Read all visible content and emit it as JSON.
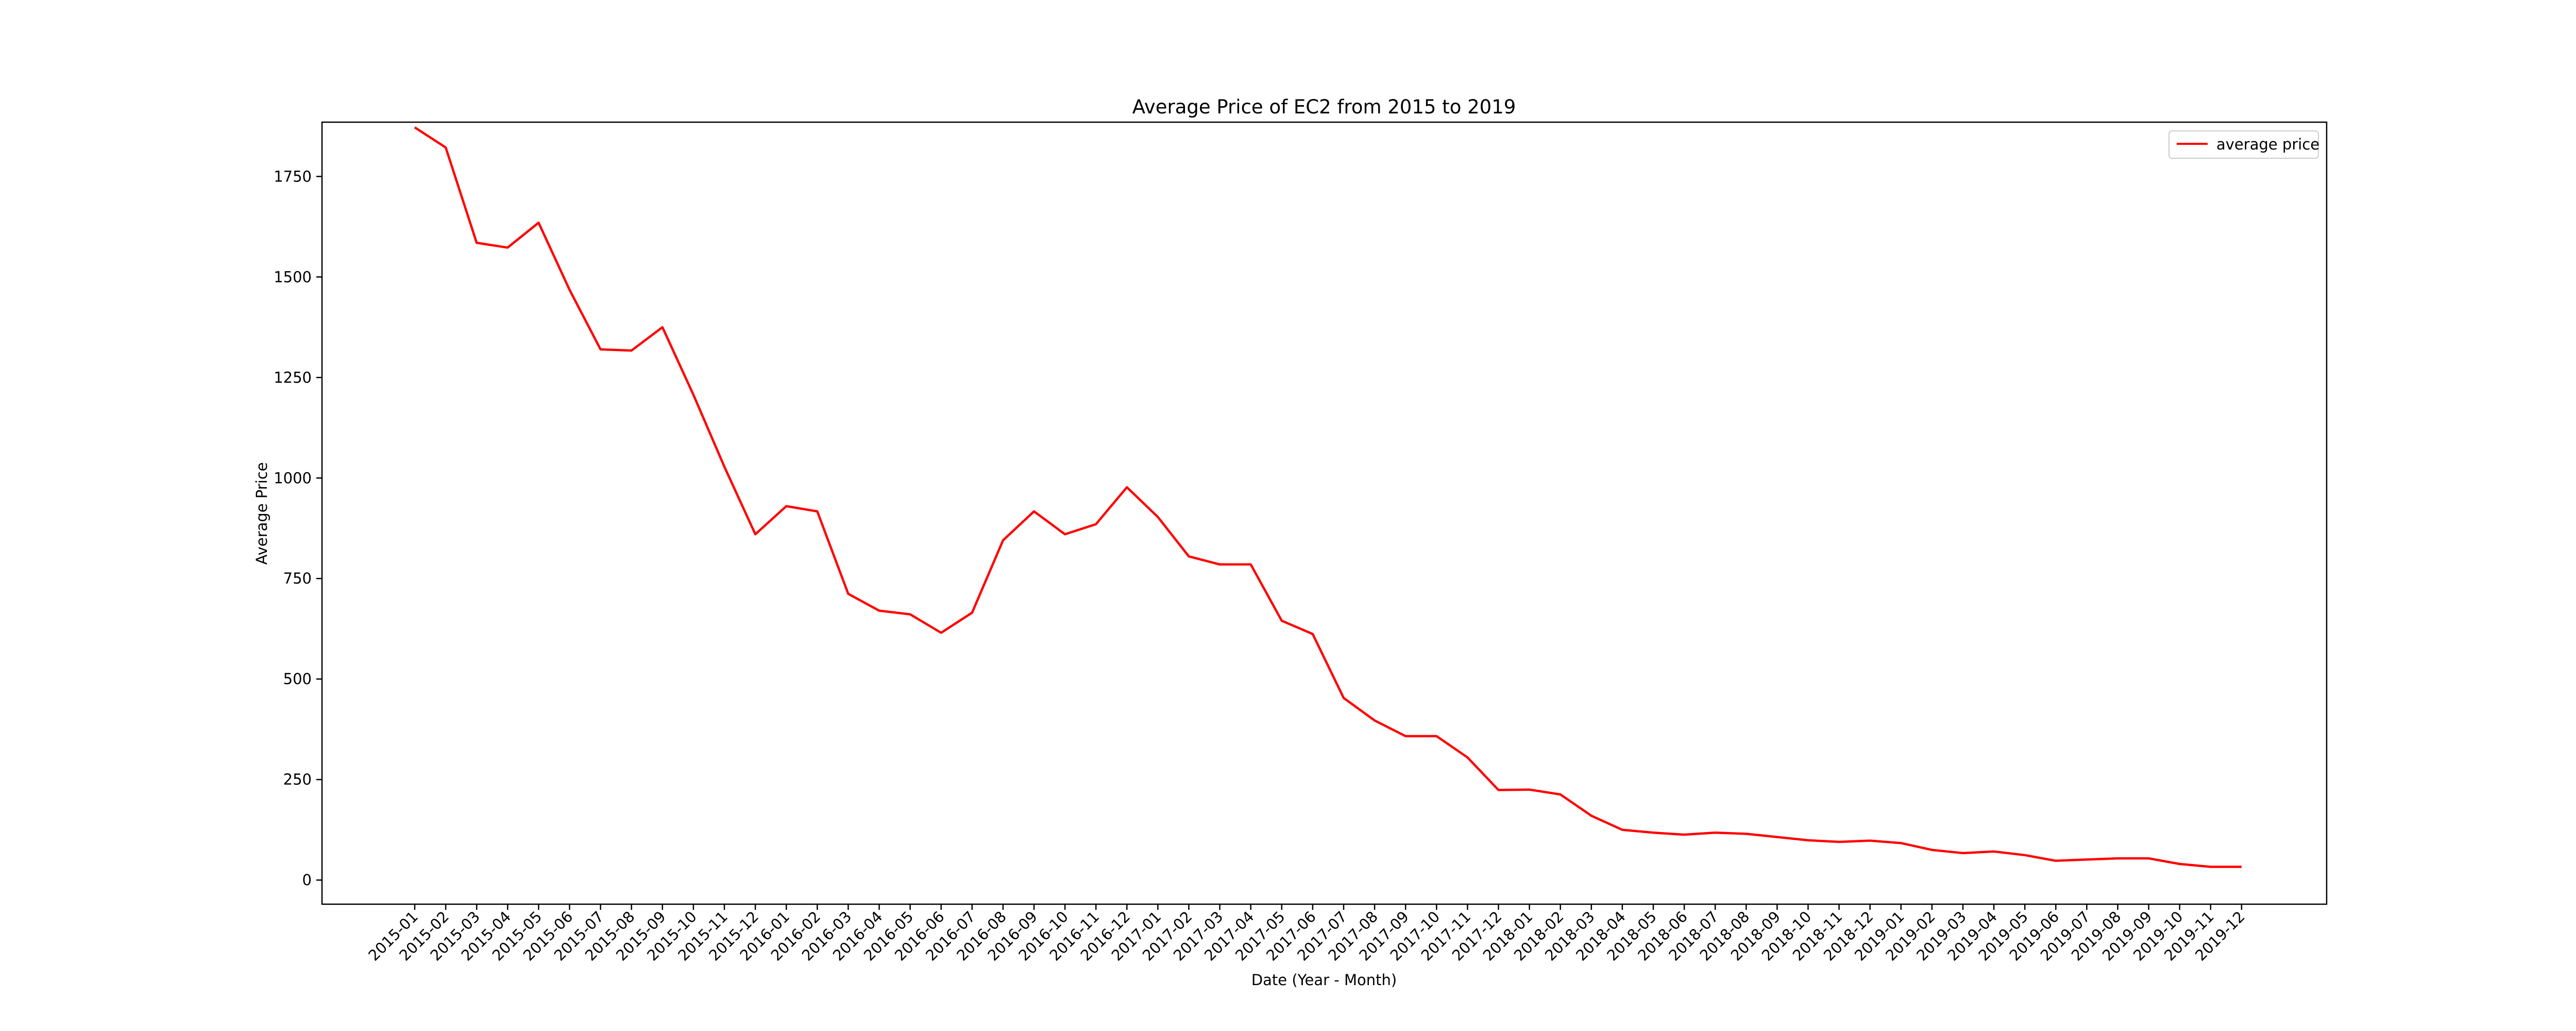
{
  "chart_data": {
    "type": "line",
    "title": "Average Price of EC2 from 2015 to 2019",
    "xlabel": "Date (Year - Month)",
    "ylabel": "Average Price",
    "ylim": [
      -60,
      1885
    ],
    "yticks": [
      0,
      250,
      500,
      750,
      1000,
      1250,
      1500,
      1750
    ],
    "grid": false,
    "legend_position": "top-right",
    "x": [
      "2015-01",
      "2015-02",
      "2015-03",
      "2015-04",
      "2015-05",
      "2015-06",
      "2015-07",
      "2015-08",
      "2015-09",
      "2015-10",
      "2015-11",
      "2015-12",
      "2016-01",
      "2016-02",
      "2016-03",
      "2016-04",
      "2016-05",
      "2016-06",
      "2016-07",
      "2016-08",
      "2016-09",
      "2016-10",
      "2016-11",
      "2016-12",
      "2017-01",
      "2017-02",
      "2017-03",
      "2017-04",
      "2017-05",
      "2017-06",
      "2017-07",
      "2017-08",
      "2017-09",
      "2017-10",
      "2017-11",
      "2017-12",
      "2018-01",
      "2018-02",
      "2018-03",
      "2018-04",
      "2018-05",
      "2018-06",
      "2018-07",
      "2018-08",
      "2018-09",
      "2018-10",
      "2018-11",
      "2018-12",
      "2019-01",
      "2019-02",
      "2019-03",
      "2019-04",
      "2019-05",
      "2019-06",
      "2019-07",
      "2019-08",
      "2019-09",
      "2019-10",
      "2019-11",
      "2019-12"
    ],
    "series": [
      {
        "name": "average price",
        "color": "#ff0000",
        "values": [
          1872,
          1822,
          1585,
          1573,
          1635,
          1468,
          1320,
          1317,
          1375,
          1207,
          1028,
          860,
          930,
          917,
          712,
          670,
          661,
          615,
          665,
          845,
          917,
          860,
          885,
          977,
          903,
          805,
          785,
          785,
          645,
          612,
          453,
          397,
          358,
          358,
          305,
          224,
          225,
          213,
          160,
          125,
          118,
          113,
          118,
          115,
          107,
          99,
          95,
          98,
          92,
          75,
          67,
          71,
          62,
          48,
          51,
          54,
          54,
          40,
          33,
          33
        ]
      }
    ]
  }
}
